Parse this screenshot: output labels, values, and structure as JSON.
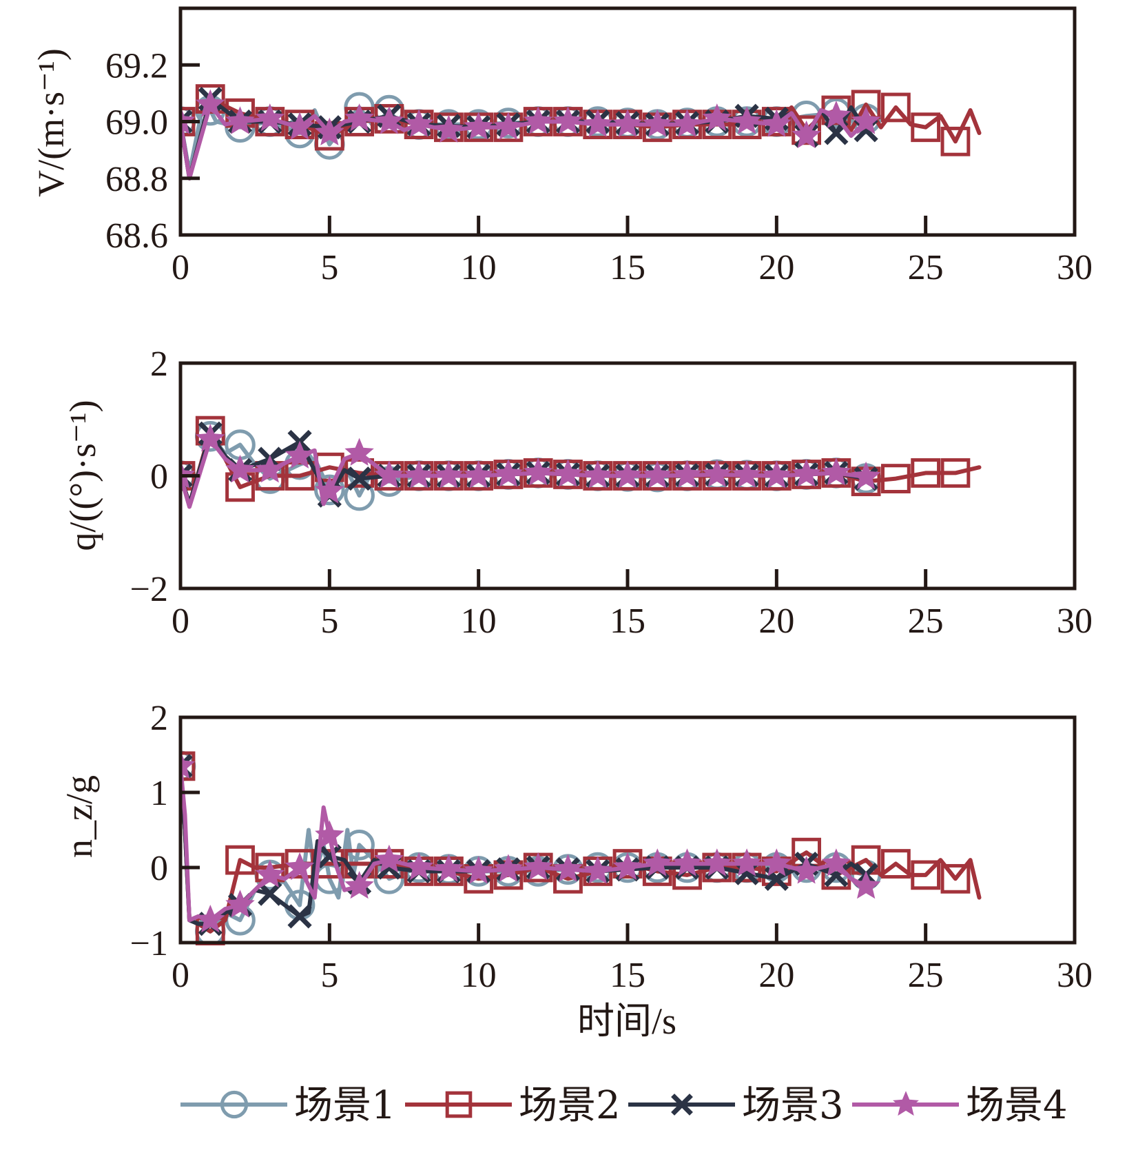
{
  "chart_data": [
    {
      "id": "velocity",
      "type": "line",
      "ylabel": "V/(m·s⁻¹)",
      "xlim": [
        0,
        30
      ],
      "ylim": [
        68.6,
        69.4
      ],
      "x_ticks": [
        "0",
        "5",
        "10",
        "15",
        "20",
        "25",
        "30"
      ],
      "y_ticks": [
        {
          "value": 68.6,
          "label": "68.6"
        },
        {
          "value": 68.8,
          "label": "68.8"
        },
        {
          "value": 69.0,
          "label": "69.0"
        },
        {
          "value": 69.2,
          "label": "69.2"
        }
      ],
      "series": [
        {
          "name": "场景1",
          "x": [
            0,
            0.3,
            0.8,
            1.2,
            2,
            3,
            4,
            4.5,
            5,
            5.5,
            6,
            6.5,
            7,
            7.5,
            8,
            10,
            12,
            14,
            16,
            18,
            20,
            21,
            22,
            22.5,
            23
          ],
          "y": [
            69.0,
            68.82,
            69.08,
            69.0,
            68.98,
            69.0,
            68.96,
            69.04,
            68.92,
            68.99,
            69.05,
            68.98,
            69.04,
            68.97,
            68.99,
            68.99,
            69.0,
            69.0,
            68.99,
            69.0,
            69.0,
            69.02,
            69.03,
            68.98,
            69.01
          ]
        },
        {
          "name": "场景2",
          "x": [
            0,
            0.3,
            1,
            2,
            3,
            4,
            5,
            6,
            7,
            8,
            9,
            10,
            11,
            12,
            13,
            14,
            15,
            16,
            17,
            18,
            19,
            20,
            20.5,
            21,
            21.5,
            22,
            22.5,
            23,
            23.5,
            24,
            24.5,
            25,
            25.5,
            26,
            26.5,
            26.8
          ],
          "y": [
            69.0,
            68.8,
            69.08,
            69.03,
            69.0,
            68.99,
            68.95,
            69.0,
            69.01,
            68.99,
            68.98,
            68.98,
            68.98,
            69.0,
            69.0,
            68.99,
            68.99,
            68.98,
            68.99,
            68.99,
            68.99,
            69.0,
            69.05,
            68.97,
            69.02,
            69.04,
            68.97,
            69.06,
            68.98,
            69.05,
            68.99,
            68.98,
            69.02,
            68.93,
            69.04,
            68.96
          ]
        },
        {
          "name": "场景3",
          "x": [
            0,
            0.3,
            1,
            2,
            3,
            4,
            5,
            6,
            7,
            8,
            10,
            12,
            14,
            16,
            18,
            19,
            20,
            20.5,
            21,
            21.5,
            22,
            22.5,
            23
          ],
          "y": [
            69.0,
            68.8,
            69.08,
            69.0,
            69.0,
            68.99,
            68.98,
            69.0,
            69.02,
            68.99,
            68.98,
            69.0,
            69.0,
            68.99,
            69.0,
            69.02,
            69.01,
            69.03,
            68.95,
            69.04,
            68.96,
            69.05,
            68.97
          ]
        },
        {
          "name": "场景4",
          "x": [
            0,
            0.3,
            1,
            1.5,
            2,
            3,
            4,
            4.5,
            5,
            5.5,
            6,
            7,
            7.5,
            8,
            9,
            10,
            11,
            12,
            13,
            14,
            15,
            16,
            17,
            18,
            19,
            20,
            20.5,
            21,
            21.5,
            22,
            22.5,
            23
          ],
          "y": [
            69.0,
            68.8,
            69.06,
            68.99,
            69.0,
            69.01,
            68.98,
            69.02,
            68.96,
            69.0,
            69.01,
            69.0,
            68.97,
            68.99,
            68.97,
            68.98,
            68.98,
            69.0,
            69.0,
            68.99,
            68.99,
            68.99,
            68.99,
            69.01,
            69.0,
            68.99,
            69.03,
            68.95,
            69.04,
            69.02,
            68.95,
            69.0
          ]
        }
      ]
    },
    {
      "id": "pitch-rate",
      "type": "line",
      "ylabel": "q/((°)·s⁻¹)",
      "xlim": [
        0,
        30
      ],
      "ylim": [
        -2,
        2
      ],
      "x_ticks": [
        "0",
        "5",
        "10",
        "15",
        "20",
        "25",
        "30"
      ],
      "y_ticks": [
        {
          "value": -2,
          "label": "−2"
        },
        {
          "value": 0,
          "label": "0"
        },
        {
          "value": 2,
          "label": "2"
        }
      ],
      "series": [
        {
          "name": "场景1",
          "x": [
            0,
            0.3,
            1,
            1.5,
            2,
            2.5,
            3,
            4,
            4.5,
            5,
            5.5,
            6,
            6.5,
            7,
            8,
            10,
            12,
            14,
            16,
            18,
            20,
            22,
            23
          ],
          "y": [
            0,
            -0.5,
            0.7,
            0.4,
            0.55,
            0.2,
            -0.05,
            0.2,
            0.3,
            -0.25,
            0.2,
            -0.35,
            0.15,
            -0.1,
            0,
            0,
            0.05,
            0,
            -0.02,
            0.02,
            0,
            0.05,
            -0.05
          ]
        },
        {
          "name": "场景2",
          "x": [
            0,
            0.3,
            1,
            1.5,
            2,
            3,
            4,
            5,
            6,
            7,
            8,
            10,
            12,
            14,
            16,
            18,
            20,
            22,
            23,
            24,
            25,
            26,
            26.8
          ],
          "y": [
            0,
            -0.5,
            0.8,
            0.3,
            -0.2,
            0,
            0,
            0.15,
            0.05,
            0,
            0,
            0,
            0.05,
            0,
            0,
            0,
            0,
            0.05,
            -0.1,
            -0.05,
            0.05,
            0.05,
            0.15
          ]
        },
        {
          "name": "场景3",
          "x": [
            0,
            0.3,
            1,
            1.5,
            2,
            3,
            4,
            4.5,
            5,
            5.5,
            6,
            7,
            8,
            10,
            12,
            14,
            16,
            18,
            20,
            22,
            23
          ],
          "y": [
            0,
            -0.5,
            0.75,
            0.35,
            0.1,
            0.3,
            0.6,
            0.1,
            -0.35,
            0.1,
            -0.05,
            0,
            0,
            0,
            0.05,
            0,
            0,
            0.02,
            0,
            0.05,
            -0.05
          ]
        },
        {
          "name": "场景4",
          "x": [
            0,
            0.3,
            1,
            1.5,
            2,
            3,
            4,
            4.5,
            4.8,
            5.5,
            6,
            7,
            8,
            10,
            12,
            14,
            16,
            18,
            20,
            22,
            23
          ],
          "y": [
            0,
            -0.55,
            0.65,
            0.3,
            0.1,
            0.1,
            0.35,
            0.45,
            -0.5,
            0.3,
            0.4,
            0,
            0,
            0,
            0.05,
            0,
            0,
            0.02,
            0,
            0.05,
            -0.02
          ]
        }
      ]
    },
    {
      "id": "load-factor",
      "type": "line",
      "ylabel": "n_z/g",
      "xlabel": "时间/s",
      "xlim": [
        0,
        30
      ],
      "ylim": [
        -1,
        2
      ],
      "x_ticks": [
        "0",
        "5",
        "10",
        "15",
        "20",
        "25",
        "30"
      ],
      "y_ticks": [
        {
          "value": -1,
          "label": "−1"
        },
        {
          "value": 0,
          "label": "0"
        },
        {
          "value": 1,
          "label": "1"
        },
        {
          "value": 2,
          "label": "2"
        }
      ],
      "series": [
        {
          "name": "场景1",
          "x": [
            0,
            0.15,
            0.3,
            0.6,
            1,
            1.5,
            2,
            2.5,
            3,
            3.5,
            4,
            4.3,
            4.5,
            4.8,
            5,
            5.3,
            5.6,
            5.8,
            6,
            6.5,
            7,
            8,
            10,
            12,
            14,
            16,
            18,
            20,
            22,
            23
          ],
          "y": [
            1.35,
            0.5,
            -0.7,
            -0.75,
            -0.85,
            -0.6,
            -0.7,
            -0.3,
            -0.1,
            -0.2,
            -0.5,
            0.5,
            -0.1,
            0.3,
            -0.15,
            -0.4,
            0.5,
            -0.1,
            0.3,
            0.1,
            -0.15,
            0,
            -0.05,
            -0.05,
            0,
            0,
            0,
            0,
            0,
            -0.1
          ]
        },
        {
          "name": "场景2",
          "x": [
            0,
            0.15,
            0.3,
            0.6,
            1,
            1.5,
            2,
            2.5,
            3,
            4,
            5,
            6,
            7,
            8,
            9,
            10,
            11,
            12,
            13,
            14,
            15,
            16,
            17,
            18,
            19,
            20,
            21,
            22,
            23,
            23.5,
            24,
            24.5,
            25,
            25.5,
            26,
            26.5,
            26.8
          ],
          "y": [
            1.35,
            0.5,
            -0.7,
            -0.75,
            -0.85,
            -0.7,
            0.1,
            0,
            0,
            0.05,
            0.05,
            0.05,
            0.05,
            -0.05,
            -0.05,
            -0.15,
            -0.1,
            0,
            -0.15,
            -0.05,
            0.05,
            -0.05,
            -0.1,
            0,
            0,
            -0.05,
            0.2,
            -0.1,
            0.1,
            -0.1,
            0.05,
            -0.1,
            -0.1,
            0.1,
            -0.15,
            0.1,
            -0.4
          ]
        },
        {
          "name": "场景3",
          "x": [
            0,
            0.15,
            0.3,
            0.6,
            1,
            1.5,
            2,
            2.5,
            3,
            3.5,
            4,
            4.3,
            4.6,
            5,
            5.5,
            6,
            6.5,
            7,
            8,
            10,
            12,
            14,
            16,
            18,
            20,
            21,
            22,
            22.5,
            23
          ],
          "y": [
            1.35,
            0.5,
            -0.7,
            -0.75,
            -0.75,
            -0.6,
            -0.5,
            -0.3,
            -0.35,
            -0.5,
            -0.65,
            -0.6,
            0.35,
            0.15,
            0.1,
            -0.2,
            0.1,
            0,
            -0.05,
            -0.05,
            0,
            -0.05,
            0,
            0,
            -0.15,
            0.05,
            -0.1,
            0.05,
            -0.1
          ]
        },
        {
          "name": "场景4",
          "x": [
            0,
            0.15,
            0.3,
            0.6,
            1,
            1.5,
            2,
            2.5,
            3,
            3.5,
            4,
            4.5,
            4.8,
            5.2,
            5.5,
            6,
            6.5,
            7,
            8,
            10,
            12,
            14,
            16,
            18,
            20,
            21,
            22,
            22.5,
            23
          ],
          "y": [
            1.35,
            0.7,
            -0.7,
            -0.65,
            -0.7,
            -0.55,
            -0.5,
            -0.3,
            -0.1,
            -0.15,
            0,
            -0.4,
            0.8,
            0.05,
            -0.3,
            -0.25,
            0.05,
            0.1,
            0,
            -0.05,
            0,
            -0.05,
            0.05,
            0.05,
            0.05,
            -0.05,
            0.05,
            -0.15,
            -0.25
          ]
        }
      ]
    }
  ],
  "legend": [
    {
      "name": "场景1",
      "color": "#7f9cae",
      "marker": "circle"
    },
    {
      "name": "场景2",
      "color": "#a3333b",
      "marker": "square"
    },
    {
      "name": "场景3",
      "color": "#2b3345",
      "marker": "cross"
    },
    {
      "name": "场景4",
      "color": "#b15aa6",
      "marker": "star"
    }
  ]
}
